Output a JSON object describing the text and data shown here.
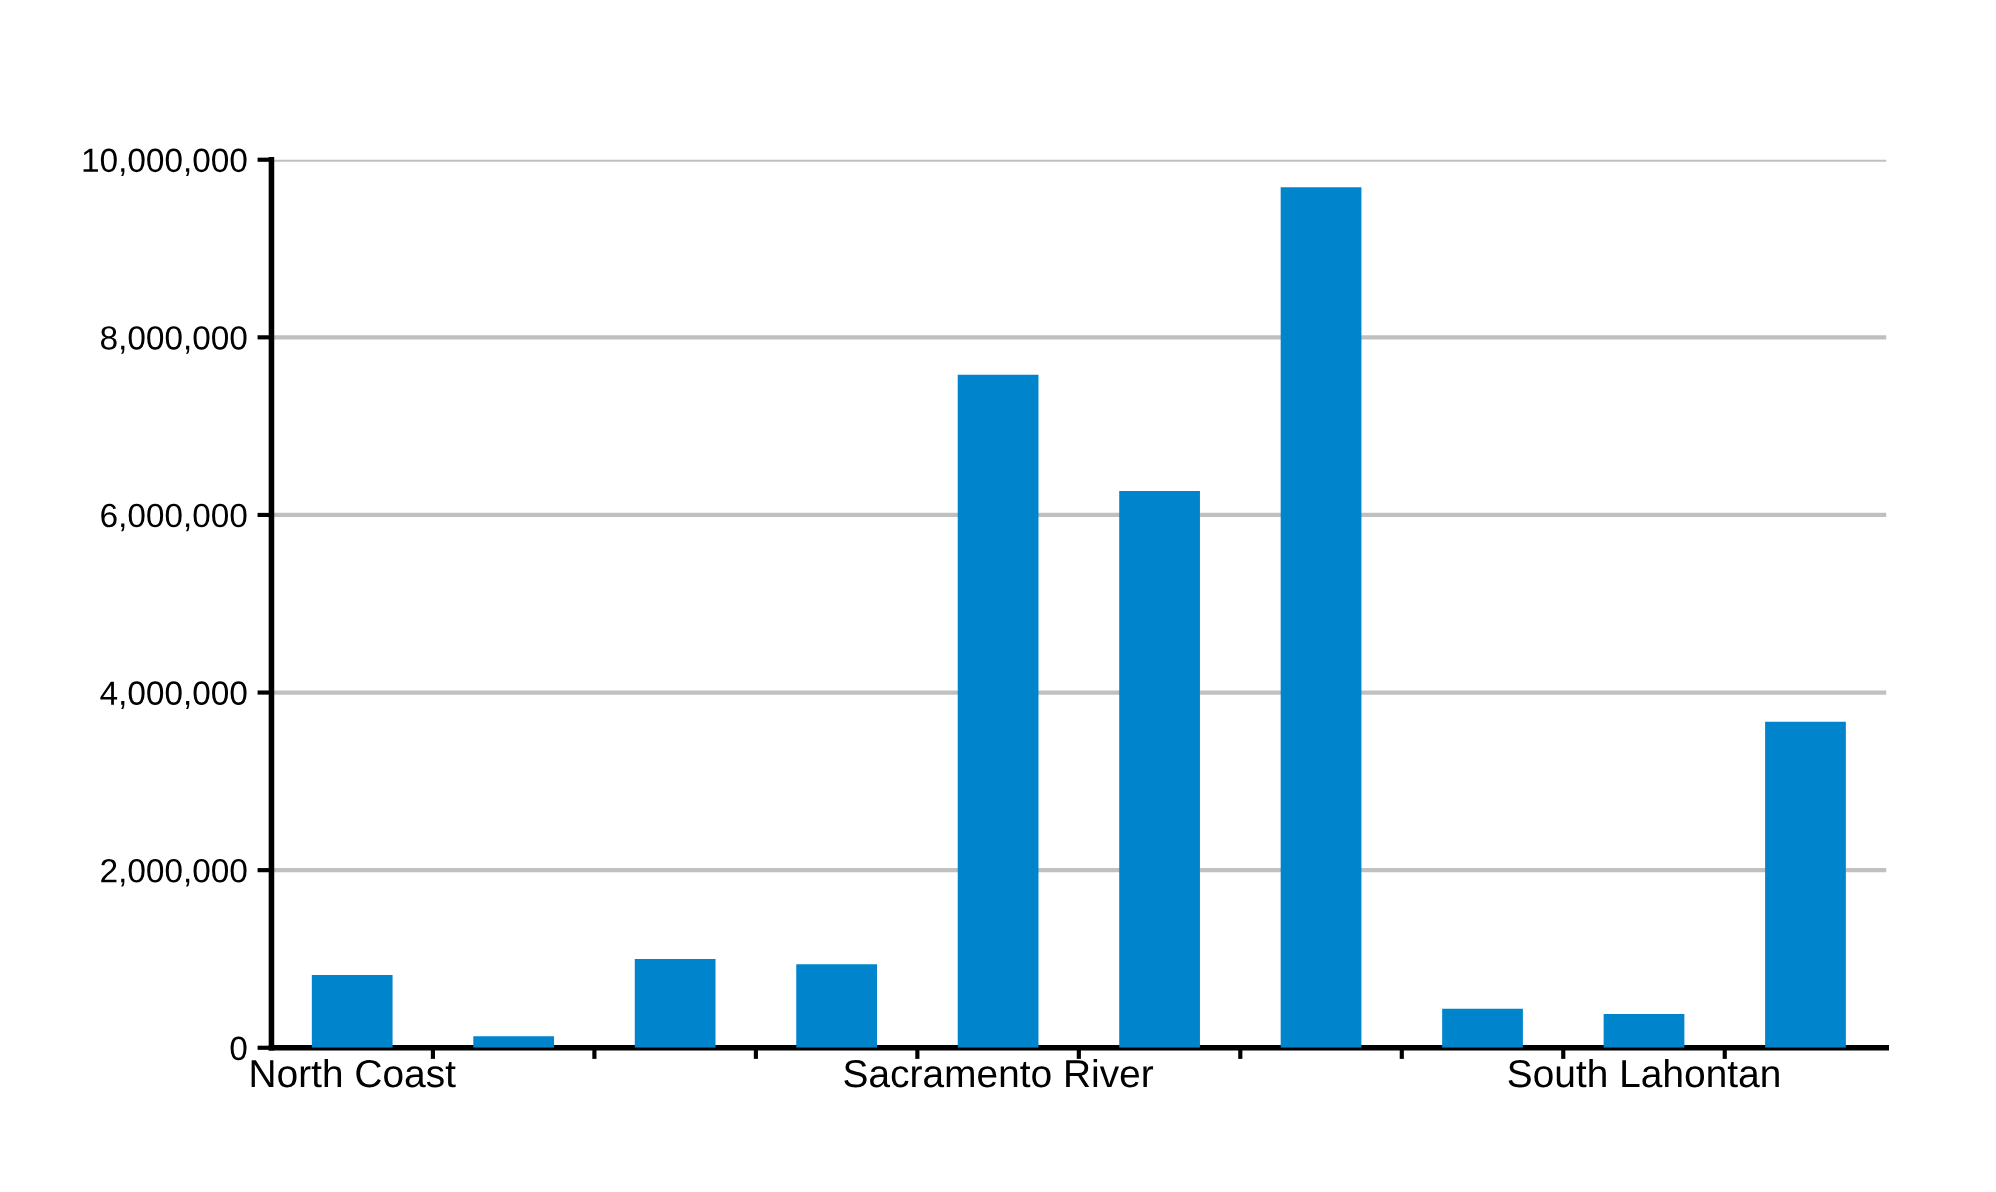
{
  "chart_data": {
    "type": "bar",
    "categories": [
      "North Coast",
      null,
      null,
      null,
      "Sacramento River",
      null,
      null,
      null,
      "South Lahontan",
      null
    ],
    "values": [
      820000,
      130000,
      1000000,
      940000,
      7580000,
      6270000,
      9690000,
      440000,
      380000,
      3670000
    ],
    "color": "#0084cc",
    "ylim": [
      0,
      10000000
    ],
    "yticks": [
      {
        "value": 0,
        "label": "0"
      },
      {
        "value": 2000000,
        "label": "2,000,000"
      },
      {
        "value": 4000000,
        "label": "4,000,000"
      },
      {
        "value": 6000000,
        "label": "6,000,000"
      },
      {
        "value": 8000000,
        "label": "8,000,000"
      },
      {
        "value": 10000000,
        "label": "10,000,000"
      }
    ],
    "grid": "y"
  }
}
